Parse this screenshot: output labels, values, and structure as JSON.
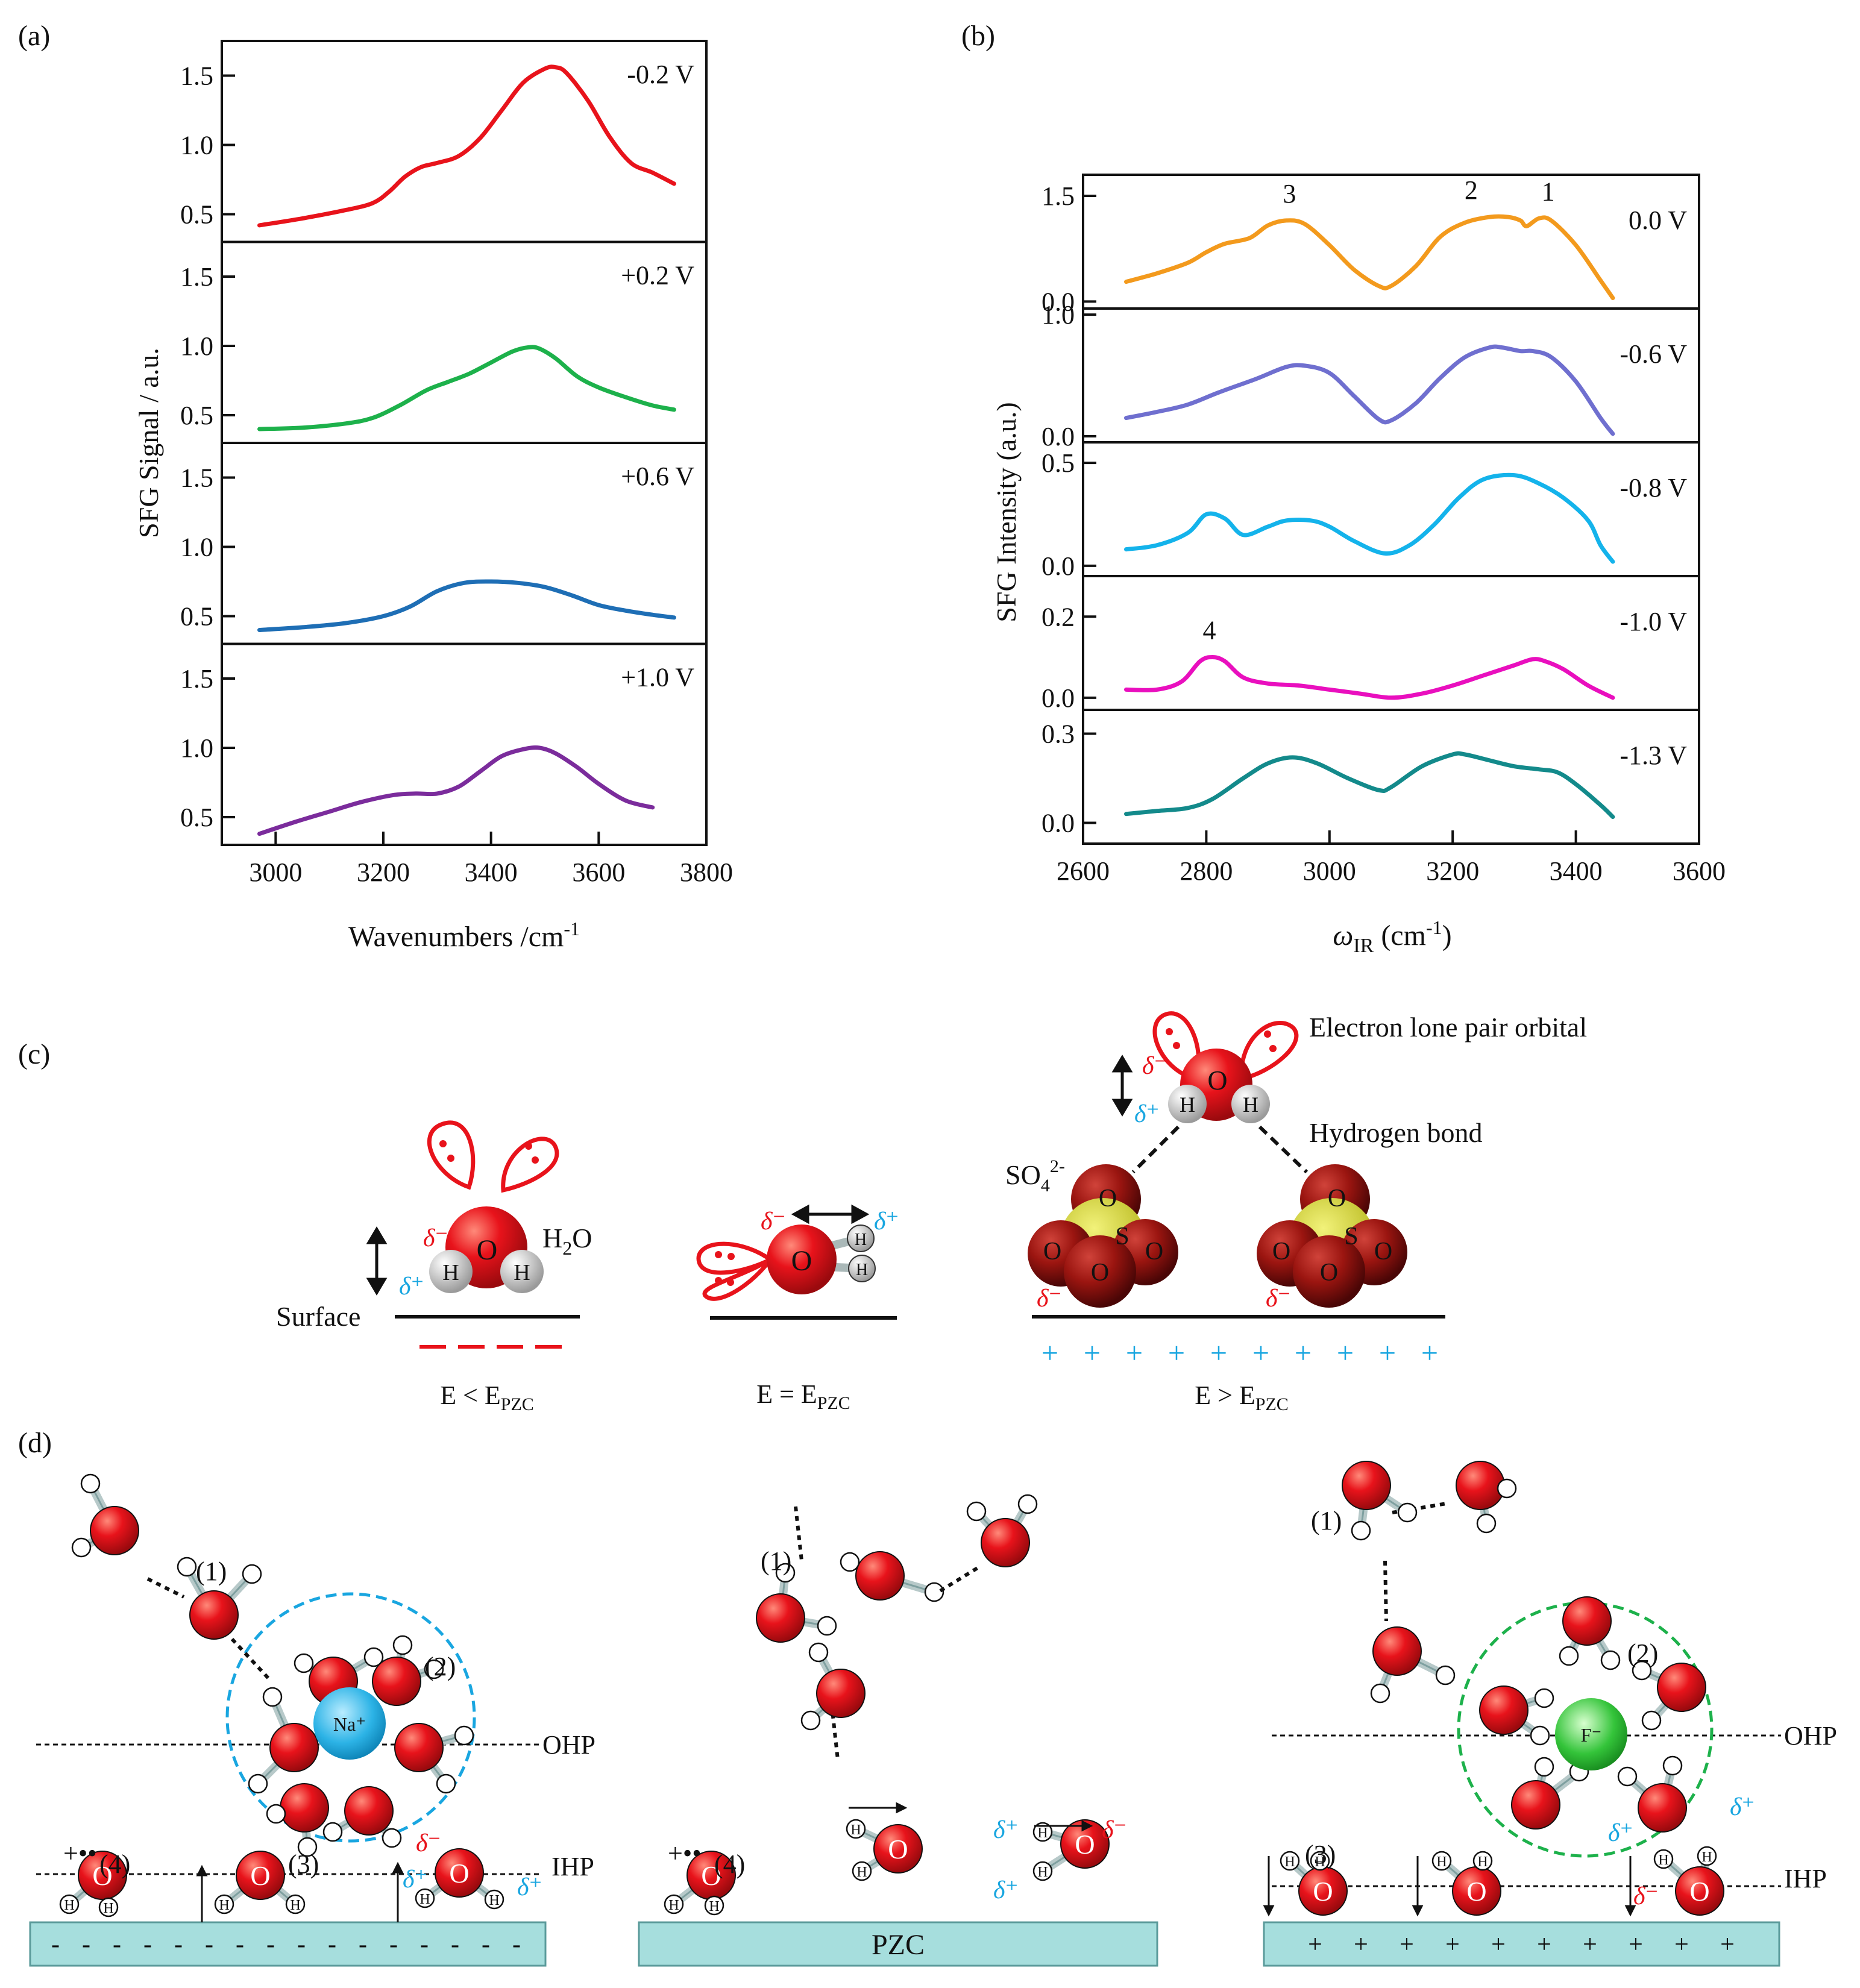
{
  "chart_data": [
    {
      "panel": "(a)",
      "type": "line",
      "xlabel": "Wavenumbers /cm",
      "xlabel_sup": "-1",
      "ylabel": "SFG Signal / a.u.",
      "xlim": [
        2900,
        3800
      ],
      "x_ticks": [
        "3000",
        "3200",
        "3400",
        "3600",
        "3800"
      ],
      "ylim": [
        0.3,
        1.75
      ],
      "y_ticks": [
        "0.5",
        "1.0",
        "1.5"
      ],
      "series": [
        {
          "name": "-0.2 V",
          "color": "#e8131b",
          "x": [
            2970,
            3050,
            3130,
            3180,
            3210,
            3240,
            3270,
            3300,
            3340,
            3380,
            3420,
            3460,
            3500,
            3520,
            3540,
            3580,
            3620,
            3660,
            3700,
            3740
          ],
          "y": [
            0.42,
            0.47,
            0.53,
            0.58,
            0.66,
            0.77,
            0.84,
            0.87,
            0.92,
            1.05,
            1.25,
            1.45,
            1.55,
            1.56,
            1.52,
            1.32,
            1.06,
            0.87,
            0.8,
            0.72
          ]
        },
        {
          "name": "+0.2 V",
          "color": "#1db14b",
          "x": [
            2970,
            3050,
            3130,
            3180,
            3230,
            3280,
            3320,
            3360,
            3400,
            3440,
            3470,
            3490,
            3520,
            3560,
            3600,
            3650,
            3700,
            3740
          ],
          "y": [
            0.4,
            0.41,
            0.44,
            0.48,
            0.57,
            0.68,
            0.74,
            0.8,
            0.88,
            0.96,
            0.99,
            0.98,
            0.91,
            0.78,
            0.7,
            0.63,
            0.57,
            0.54
          ]
        },
        {
          "name": "+0.6 V",
          "color": "#1e6eb5",
          "x": [
            2970,
            3050,
            3130,
            3200,
            3250,
            3300,
            3350,
            3400,
            3450,
            3500,
            3550,
            3600,
            3650,
            3700,
            3740
          ],
          "y": [
            0.4,
            0.42,
            0.45,
            0.5,
            0.57,
            0.68,
            0.74,
            0.75,
            0.74,
            0.71,
            0.65,
            0.58,
            0.54,
            0.51,
            0.49
          ]
        },
        {
          "name": "+1.0 V",
          "color": "#7b2c9c",
          "x": [
            2970,
            3040,
            3100,
            3160,
            3220,
            3260,
            3300,
            3340,
            3380,
            3420,
            3460,
            3490,
            3520,
            3560,
            3600,
            3650,
            3700
          ],
          "y": [
            0.38,
            0.47,
            0.54,
            0.61,
            0.66,
            0.67,
            0.67,
            0.72,
            0.83,
            0.94,
            0.99,
            1.0,
            0.96,
            0.86,
            0.74,
            0.62,
            0.57
          ]
        }
      ]
    },
    {
      "panel": "(b)",
      "type": "line",
      "xlabel": "ω",
      "xlabel_sub": "IR",
      "xlabel_unit": "(cm",
      "xlabel_sup": "-1",
      "xlabel_end": ")",
      "ylabel": "SFG Intensity (a.u.)",
      "xlim": [
        2600,
        3600
      ],
      "x_ticks": [
        "2600",
        "2800",
        "3000",
        "3200",
        "3400",
        "3600"
      ],
      "series": [
        {
          "name": "0.0 V",
          "color": "#f39a1d",
          "ylim": [
            -0.1,
            1.8
          ],
          "y_ticks": [
            "0.0",
            "1.5"
          ],
          "x": [
            2670,
            2720,
            2770,
            2800,
            2830,
            2870,
            2900,
            2930,
            2960,
            3000,
            3040,
            3080,
            3100,
            3140,
            3180,
            3220,
            3260,
            3290,
            3310,
            3320,
            3340,
            3360,
            3400,
            3440,
            3460
          ],
          "y": [
            0.28,
            0.4,
            0.55,
            0.7,
            0.82,
            0.9,
            1.08,
            1.15,
            1.1,
            0.8,
            0.45,
            0.22,
            0.22,
            0.5,
            0.92,
            1.12,
            1.2,
            1.2,
            1.15,
            1.07,
            1.18,
            1.15,
            0.8,
            0.3,
            0.05
          ]
        },
        {
          "name": "-0.6 V",
          "color": "#6f6fcf",
          "ylim": [
            -0.05,
            1.05
          ],
          "y_ticks": [
            "0.0",
            "1.0"
          ],
          "x": [
            2670,
            2720,
            2770,
            2820,
            2880,
            2930,
            2960,
            3000,
            3040,
            3080,
            3100,
            3140,
            3180,
            3220,
            3260,
            3280,
            3310,
            3330,
            3360,
            3400,
            3440,
            3460
          ],
          "y": [
            0.15,
            0.2,
            0.26,
            0.36,
            0.47,
            0.57,
            0.58,
            0.52,
            0.33,
            0.14,
            0.13,
            0.27,
            0.48,
            0.65,
            0.73,
            0.73,
            0.7,
            0.7,
            0.65,
            0.45,
            0.15,
            0.02
          ]
        },
        {
          "name": "-0.8 V",
          "color": "#14b3eb",
          "ylim": [
            -0.05,
            0.6
          ],
          "y_ticks": [
            "0.0",
            "0.5"
          ],
          "x": [
            2670,
            2720,
            2770,
            2800,
            2830,
            2860,
            2900,
            2930,
            2970,
            3000,
            3040,
            3090,
            3130,
            3170,
            3210,
            3250,
            3300,
            3340,
            3380,
            3420,
            3440,
            3460
          ],
          "y": [
            0.08,
            0.1,
            0.16,
            0.25,
            0.23,
            0.15,
            0.19,
            0.22,
            0.22,
            0.19,
            0.12,
            0.06,
            0.1,
            0.2,
            0.33,
            0.42,
            0.44,
            0.4,
            0.33,
            0.22,
            0.1,
            0.02
          ]
        },
        {
          "name": "-1.0 V",
          "color": "#e90fbe",
          "ylim": [
            -0.03,
            0.3
          ],
          "y_ticks": [
            "0.0",
            "0.2"
          ],
          "x": [
            2670,
            2720,
            2760,
            2790,
            2810,
            2830,
            2860,
            2900,
            2950,
            3000,
            3050,
            3100,
            3150,
            3200,
            3250,
            3300,
            3330,
            3350,
            3380,
            3420,
            3460
          ],
          "y": [
            0.02,
            0.02,
            0.04,
            0.09,
            0.1,
            0.09,
            0.05,
            0.035,
            0.03,
            0.02,
            0.01,
            0.0,
            0.01,
            0.03,
            0.055,
            0.08,
            0.095,
            0.09,
            0.07,
            0.03,
            0.0
          ]
        },
        {
          "name": "-1.3 V",
          "color": "#138a8b",
          "ylim": [
            -0.07,
            0.38
          ],
          "y_ticks": [
            "0.0",
            "0.3"
          ],
          "x": [
            2670,
            2720,
            2770,
            2810,
            2860,
            2900,
            2940,
            2980,
            3030,
            3080,
            3100,
            3150,
            3200,
            3220,
            3260,
            3300,
            3340,
            3370,
            3400,
            3440,
            3460
          ],
          "y": [
            0.03,
            0.04,
            0.05,
            0.08,
            0.15,
            0.2,
            0.22,
            0.2,
            0.15,
            0.11,
            0.12,
            0.19,
            0.23,
            0.23,
            0.21,
            0.19,
            0.18,
            0.17,
            0.13,
            0.06,
            0.02
          ]
        }
      ],
      "peak_labels": [
        {
          "text": "3",
          "x": 2935,
          "y": 1.15
        },
        {
          "text": "2",
          "x": 3230,
          "y": 1.2
        },
        {
          "text": "1",
          "x": 3355,
          "y": 1.18
        },
        {
          "text": "4",
          "x": 2805,
          "y": 0.1
        }
      ]
    }
  ],
  "panels": {
    "a": "(a)",
    "b": "(b)",
    "c": "(c)",
    "d": "(d)"
  },
  "panel_c": {
    "surface_label": "Surface",
    "h2o_label": "H",
    "h2o_sub": "2",
    "h2o_end": "O",
    "sulfate_label": "SO",
    "sulfate_sub": "4",
    "sulfate_sup": "2-",
    "lone_pair_label": "Electron lone pair orbital",
    "hbond_label": "Hydrogen bond",
    "delta_minus": "δ⁻",
    "delta_plus": "δ⁺",
    "oxygen": "O",
    "hydrogen": "H",
    "sulfur": "S",
    "conditions": [
      {
        "prefix": "E < E",
        "sub": "PZC"
      },
      {
        "prefix": "E = E",
        "sub": "PZC"
      },
      {
        "prefix": "E > E",
        "sub": "PZC"
      }
    ],
    "negative_charge_color": "#e8131b",
    "positive_charge_color": "#19a6e0",
    "plus_sign": "+"
  },
  "panel_d": {
    "ohp_label": "OHP",
    "ihp_label": "IHP",
    "pzc_label": "PZC",
    "na_label": "Na⁺",
    "f_label": "F⁻",
    "layer_labels": [
      "(1)",
      "(2)",
      "(3)",
      "(4)"
    ],
    "minus_sign": "-",
    "plus_sign": "+",
    "plus_dots": "+••",
    "electrode_color": "#a6dedd",
    "water_color": "#e8131b"
  }
}
